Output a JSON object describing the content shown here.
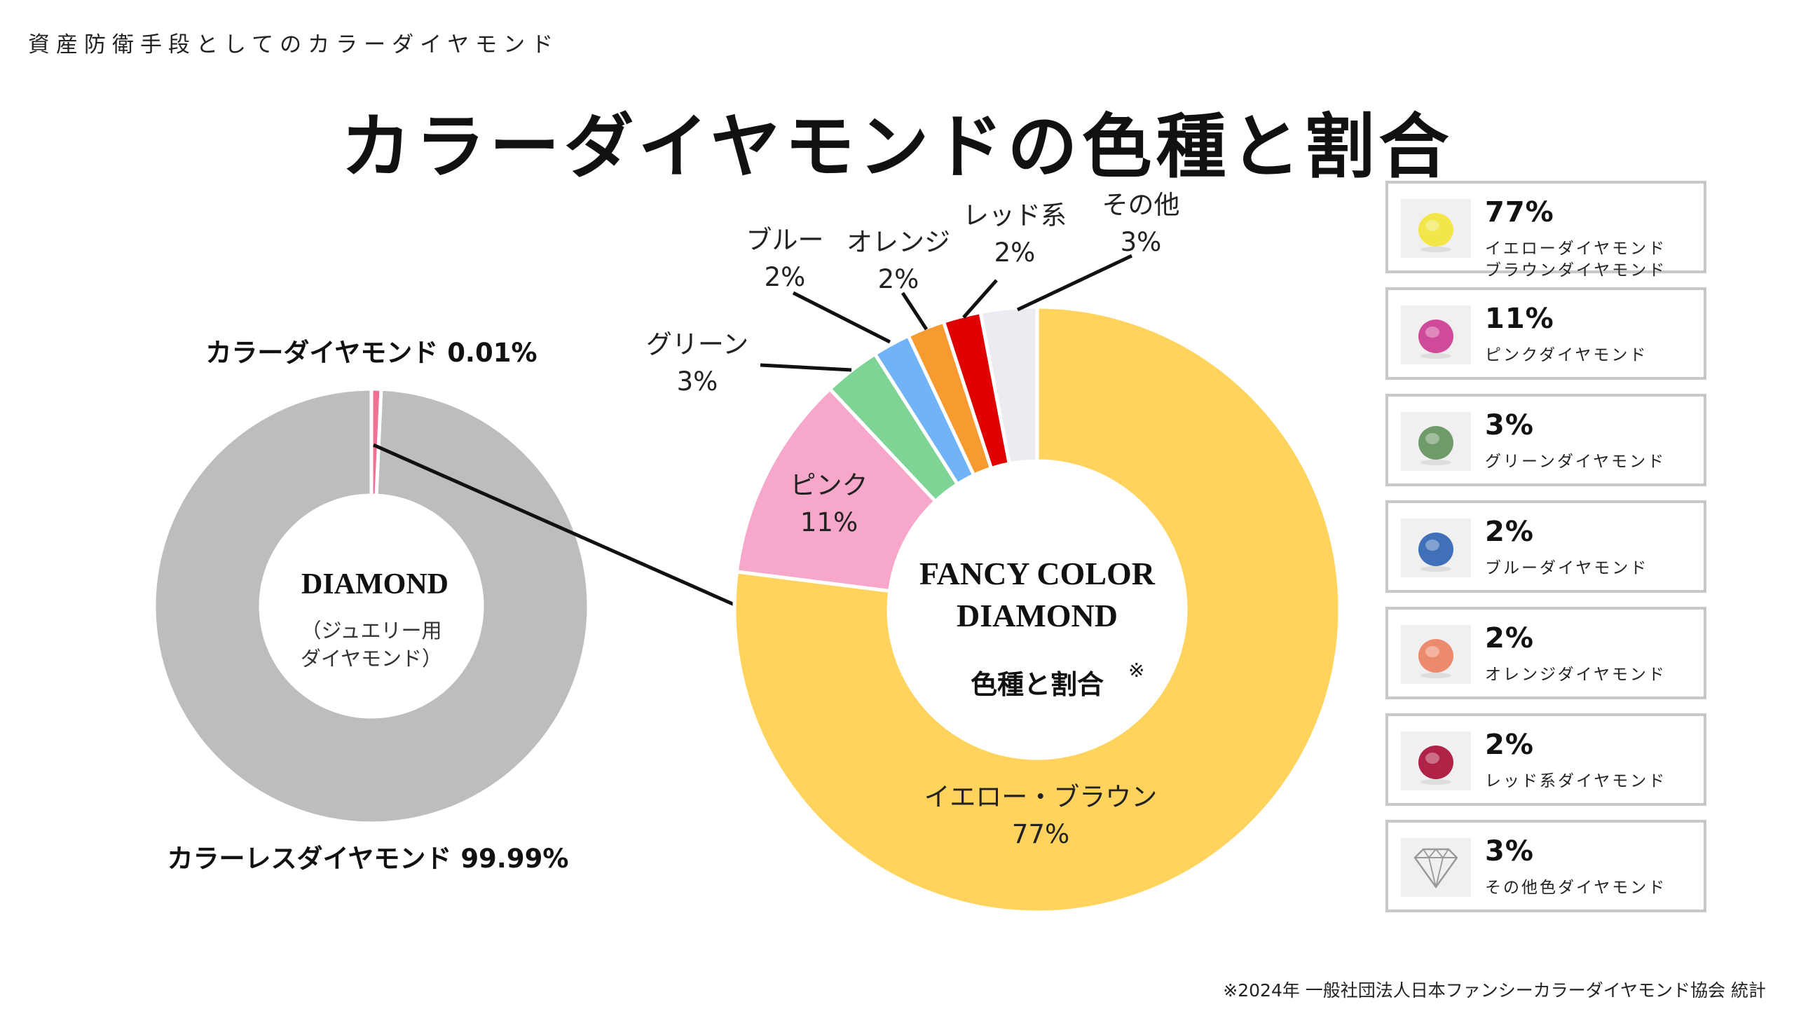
{
  "header": {
    "kicker": "資産防衛手段としてのカラーダイヤモンド",
    "title": "カラーダイヤモンドの色種と割合"
  },
  "chart_data": [
    {
      "type": "pie",
      "center_title": "DIAMOND",
      "center_subtitle": "（ジュエリー用\nダイヤモンド）",
      "slices": [
        {
          "name": "カラーダイヤモンド",
          "value": 0.01,
          "label": "カラーダイヤモンド 0.01%",
          "color": "#f07096"
        },
        {
          "name": "カラーレスダイヤモンド",
          "value": 99.99,
          "label": "カラーレスダイヤモンド 99.99%",
          "color": "#bdbdbd"
        }
      ]
    },
    {
      "type": "pie",
      "center_title_line1": "FANCY COLOR",
      "center_title_line2": "DIAMOND",
      "center_subtitle": "色種と割合",
      "center_mark": "※",
      "slices": [
        {
          "name": "イエロー・ブラウン",
          "value": 77,
          "pct": "77%",
          "color": "#ffd35c"
        },
        {
          "name": "ピンク",
          "value": 11,
          "pct": "11%",
          "color": "#f7a7c9"
        },
        {
          "name": "グリーン",
          "value": 3,
          "pct": "3%",
          "color": "#7dd495"
        },
        {
          "name": "ブルー",
          "value": 2,
          "pct": "2%",
          "color": "#70b3f7"
        },
        {
          "name": "オレンジ",
          "value": 2,
          "pct": "2%",
          "color": "#f79a30"
        },
        {
          "name": "レッド系",
          "value": 2,
          "pct": "2%",
          "color": "#e00000"
        },
        {
          "name": "その他",
          "value": 3,
          "pct": "3%",
          "color": "#ecebf1"
        }
      ]
    }
  ],
  "legend": [
    {
      "pct": "77%",
      "label": "イエローダイヤモンド\nブラウンダイヤモンド",
      "icon": "yellow-diamond-photo",
      "color": "#f2e64a"
    },
    {
      "pct": "11%",
      "label": "ピンクダイヤモンド",
      "icon": "pink-diamond-photo",
      "color": "#d04a9a"
    },
    {
      "pct": "3%",
      "label": "グリーンダイヤモンド",
      "icon": "green-diamond-photo",
      "color": "#6f9a6a"
    },
    {
      "pct": "2%",
      "label": "ブルーダイヤモンド",
      "icon": "blue-diamond-photo",
      "color": "#3f70b8"
    },
    {
      "pct": "2%",
      "label": "オレンジダイヤモンド",
      "icon": "orange-diamond-photo",
      "color": "#ec8a6e"
    },
    {
      "pct": "2%",
      "label": "レッド系ダイヤモンド",
      "icon": "red-diamond-photo",
      "color": "#b02246"
    },
    {
      "pct": "3%",
      "label": "その他色ダイヤモンド",
      "icon": "diamond-outline-icon",
      "color": "#9a9a9a"
    }
  ],
  "footnote": "※2024年 一般社団法人日本ファンシーカラーダイヤモンド協会 統計"
}
